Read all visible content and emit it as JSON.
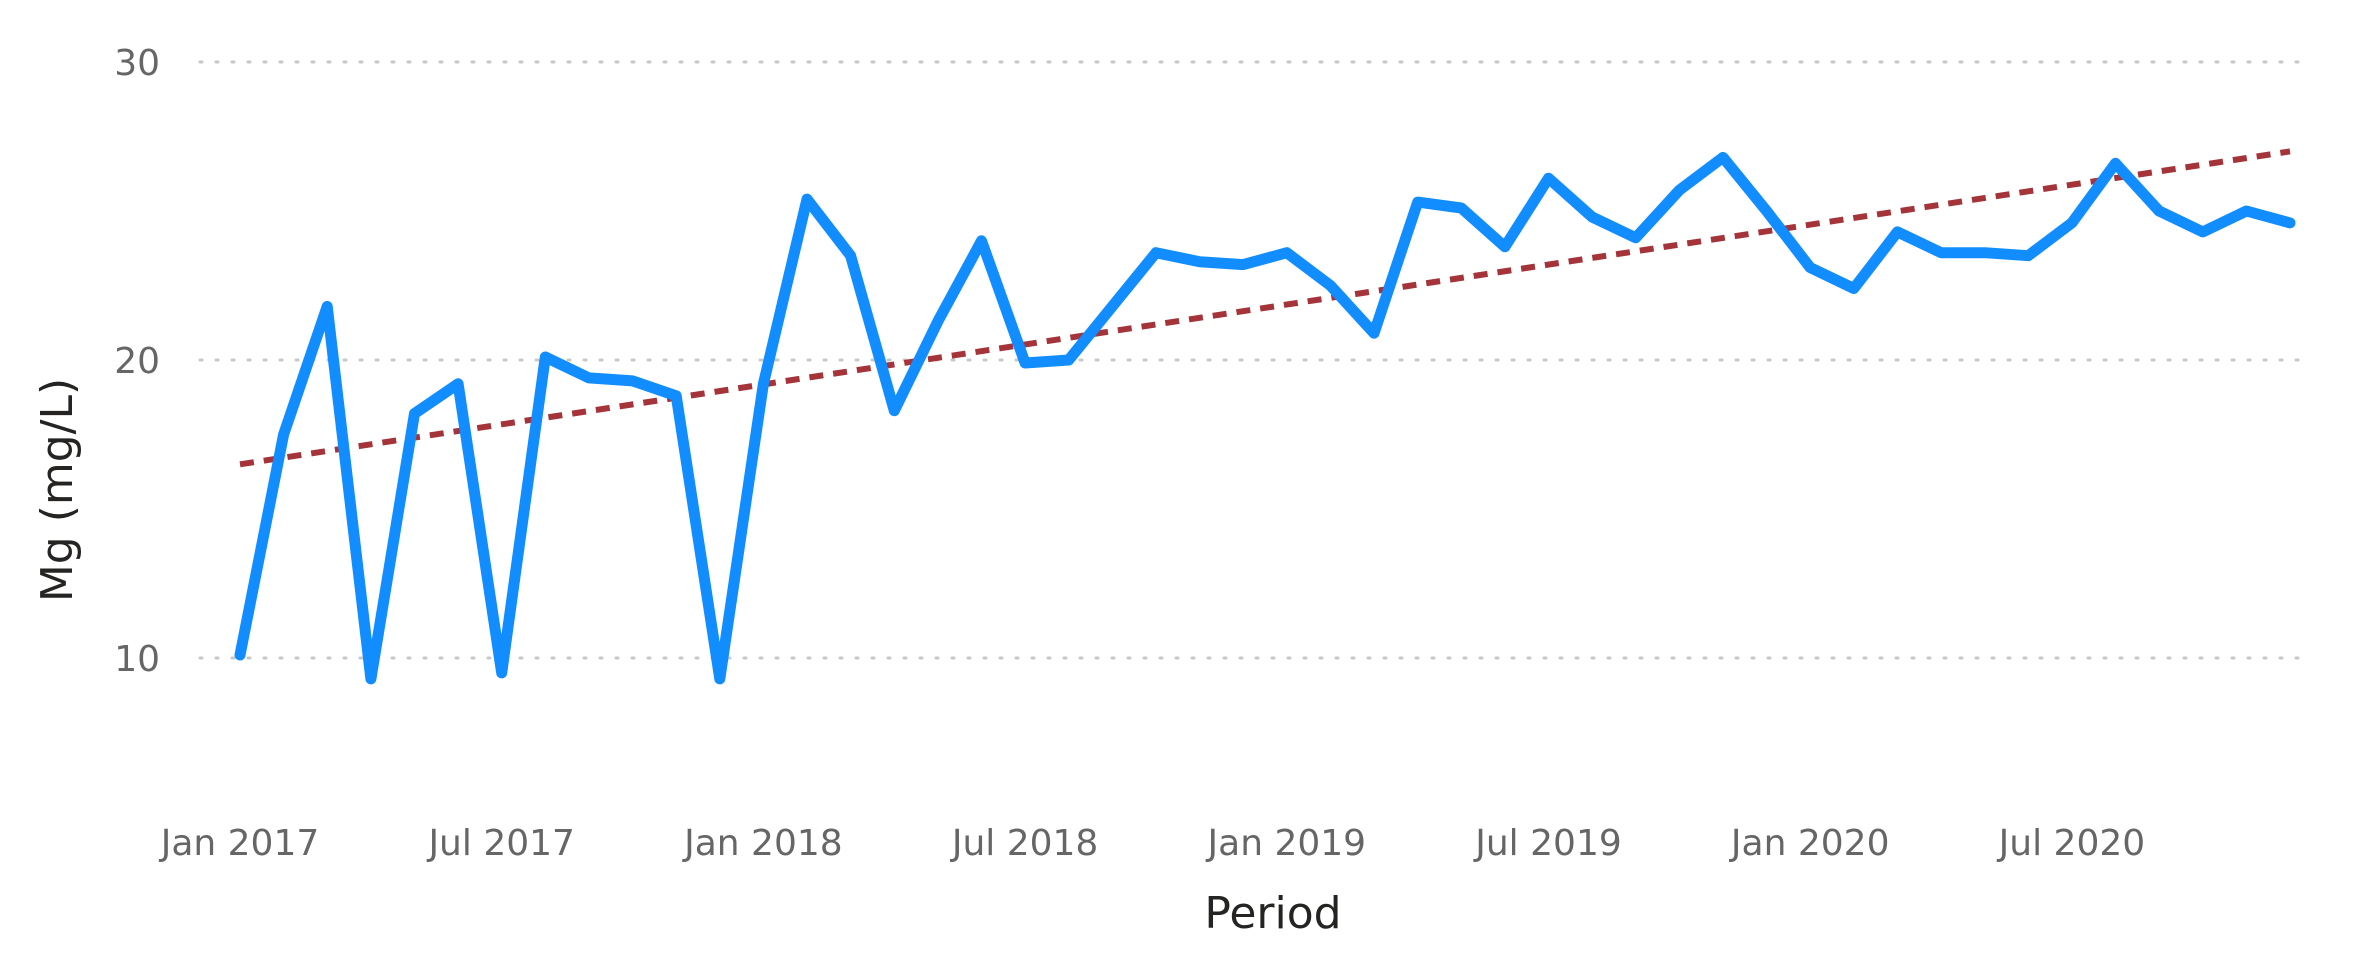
{
  "chart_data": {
    "type": "line",
    "title": "",
    "xlabel": "Period",
    "ylabel": "Mg (mg/L)",
    "ylim": [
      3,
      30
    ],
    "yticks": [
      10,
      20,
      30
    ],
    "grid": true,
    "x_tick_labels": [
      {
        "label": "Jan 2017",
        "month_index": 0
      },
      {
        "label": "Jul 2017",
        "month_index": 6
      },
      {
        "label": "Jan 2018",
        "month_index": 12
      },
      {
        "label": "Jul 2018",
        "month_index": 18
      },
      {
        "label": "Jan 2019",
        "month_index": 24
      },
      {
        "label": "Jul 2019",
        "month_index": 30
      },
      {
        "label": "Jan 2020",
        "month_index": 36
      },
      {
        "label": "Jul 2020",
        "month_index": 42
      }
    ],
    "x": [
      "2017-01",
      "2017-02",
      "2017-03",
      "2017-04",
      "2017-05",
      "2017-06",
      "2017-07",
      "2017-08",
      "2017-09",
      "2017-10",
      "2017-11",
      "2017-12",
      "2018-01",
      "2018-02",
      "2018-03",
      "2018-04",
      "2018-05",
      "2018-06",
      "2018-07",
      "2018-08",
      "2018-09",
      "2018-10",
      "2018-11",
      "2018-12",
      "2019-01",
      "2019-02",
      "2019-03",
      "2019-04",
      "2019-05",
      "2019-06",
      "2019-07",
      "2019-08",
      "2019-09",
      "2019-10",
      "2019-11",
      "2019-12",
      "2020-01",
      "2020-02",
      "2020-03",
      "2020-04",
      "2020-05",
      "2020-06",
      "2020-07",
      "2020-08",
      "2020-09",
      "2020-10",
      "2020-11",
      "2020-12"
    ],
    "series": [
      {
        "color": "#118DFF",
        "values": [
          10.1,
          17.5,
          21.8,
          9.3,
          18.2,
          19.2,
          9.5,
          20.1,
          19.4,
          19.3,
          18.8,
          9.3,
          19.2,
          25.4,
          23.5,
          18.3,
          21.3,
          24.0,
          19.9,
          20.0,
          21.8,
          23.6,
          23.3,
          23.2,
          23.6,
          22.5,
          20.9,
          25.3,
          25.1,
          23.8,
          26.1,
          24.8,
          24.1,
          25.7,
          26.8,
          25.0,
          23.1,
          22.4,
          24.3,
          23.6,
          23.6,
          23.5,
          24.6,
          26.6,
          25.0,
          24.3,
          25.0,
          24.6
        ]
      }
    ],
    "trend_line": {
      "color": "#A4343A",
      "start": 16.5,
      "end": 27.0,
      "style": "dashed"
    }
  }
}
